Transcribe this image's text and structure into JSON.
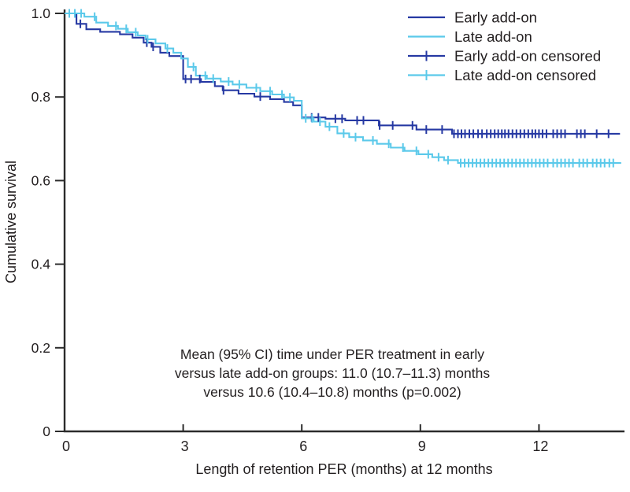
{
  "chart_data": {
    "type": "line",
    "subtype": "kaplan-meier-step-survival",
    "title": "",
    "xlabel": "Length of retention PER (months) at 12 months",
    "ylabel": "Cumulative survival",
    "xlim": [
      0,
      14.1
    ],
    "ylim": [
      0,
      1.0
    ],
    "grid": false,
    "legend_position": "top-right",
    "x_ticks": [
      {
        "value": 0,
        "label": "0"
      },
      {
        "value": 3,
        "label": "3"
      },
      {
        "value": 6,
        "label": "6"
      },
      {
        "value": 9,
        "label": "9"
      },
      {
        "value": 12,
        "label": "12"
      }
    ],
    "y_ticks": [
      {
        "value": 1.0,
        "label": "1.0"
      },
      {
        "value": 0.8,
        "label": "0.8"
      },
      {
        "value": 0.6,
        "label": "0.6"
      },
      {
        "value": 0.4,
        "label": "0.4"
      },
      {
        "value": 0.2,
        "label": "0.2"
      },
      {
        "value": 0.0,
        "label": "0"
      }
    ],
    "colors": {
      "early": "#2639A3",
      "late": "#5BC9EA",
      "axis": "#2B2B2B",
      "text": "#231F20"
    },
    "series": [
      {
        "name": "Early add-on",
        "color_key": "early",
        "step_points": [
          [
            0,
            1.0
          ],
          [
            0.3,
            0.975
          ],
          [
            0.55,
            0.962
          ],
          [
            0.9,
            0.956
          ],
          [
            1.4,
            0.95
          ],
          [
            1.72,
            0.942
          ],
          [
            2.0,
            0.93
          ],
          [
            2.2,
            0.92
          ],
          [
            2.42,
            0.906
          ],
          [
            2.65,
            0.898
          ],
          [
            3.0,
            0.843
          ],
          [
            3.45,
            0.836
          ],
          [
            3.8,
            0.826
          ],
          [
            4.0,
            0.816
          ],
          [
            4.4,
            0.808
          ],
          [
            4.8,
            0.801
          ],
          [
            5.2,
            0.795
          ],
          [
            5.55,
            0.788
          ],
          [
            5.78,
            0.78
          ],
          [
            6.0,
            0.751
          ],
          [
            6.6,
            0.748
          ],
          [
            7.1,
            0.744
          ],
          [
            7.95,
            0.732
          ],
          [
            8.9,
            0.722
          ],
          [
            9.8,
            0.712
          ],
          [
            14.05,
            0.712
          ]
        ],
        "censored_months": [
          0.4,
          2.08,
          2.24,
          3.06,
          3.2,
          3.42,
          4.02,
          4.95,
          6.25,
          6.42,
          6.85,
          7.02,
          7.4,
          7.56,
          7.97,
          8.3,
          8.8,
          9.15,
          9.55,
          9.85,
          9.95,
          10.04,
          10.13,
          10.24,
          10.34,
          10.46,
          10.56,
          10.68,
          10.78,
          10.88,
          10.97,
          11.06,
          11.14,
          11.23,
          11.33,
          11.43,
          11.53,
          11.63,
          11.73,
          11.83,
          11.91,
          12.0,
          12.09,
          12.19,
          12.36,
          12.46,
          12.56,
          12.66,
          12.96,
          13.06,
          13.16,
          13.46,
          13.76
        ]
      },
      {
        "name": "Late add-on",
        "color_key": "late",
        "step_points": [
          [
            0,
            1.0
          ],
          [
            0.5,
            0.992
          ],
          [
            0.8,
            0.978
          ],
          [
            1.1,
            0.97
          ],
          [
            1.35,
            0.963
          ],
          [
            1.6,
            0.955
          ],
          [
            1.85,
            0.947
          ],
          [
            2.05,
            0.938
          ],
          [
            2.3,
            0.928
          ],
          [
            2.55,
            0.916
          ],
          [
            2.75,
            0.906
          ],
          [
            2.95,
            0.892
          ],
          [
            3.12,
            0.872
          ],
          [
            3.32,
            0.851
          ],
          [
            3.6,
            0.844
          ],
          [
            3.95,
            0.837
          ],
          [
            4.25,
            0.83
          ],
          [
            4.6,
            0.822
          ],
          [
            4.95,
            0.814
          ],
          [
            5.25,
            0.806
          ],
          [
            5.55,
            0.799
          ],
          [
            5.8,
            0.791
          ],
          [
            6.0,
            0.749
          ],
          [
            6.3,
            0.741
          ],
          [
            6.6,
            0.729
          ],
          [
            6.9,
            0.713
          ],
          [
            7.2,
            0.704
          ],
          [
            7.55,
            0.696
          ],
          [
            7.9,
            0.688
          ],
          [
            8.25,
            0.679
          ],
          [
            8.6,
            0.671
          ],
          [
            8.95,
            0.663
          ],
          [
            9.3,
            0.656
          ],
          [
            9.6,
            0.649
          ],
          [
            9.95,
            0.642
          ],
          [
            14.08,
            0.642
          ]
        ],
        "censored_months": [
          0.12,
          0.26,
          0.42,
          0.76,
          1.3,
          1.56,
          1.8,
          2.1,
          2.6,
          3.26,
          3.56,
          3.76,
          4.15,
          4.42,
          4.85,
          5.2,
          5.5,
          5.7,
          6.1,
          6.26,
          6.46,
          6.7,
          7.06,
          7.36,
          7.8,
          8.2,
          8.56,
          8.9,
          9.2,
          9.46,
          9.7,
          10.02,
          10.12,
          10.22,
          10.32,
          10.42,
          10.52,
          10.62,
          10.72,
          10.82,
          10.92,
          11.02,
          11.12,
          11.22,
          11.32,
          11.42,
          11.52,
          11.62,
          11.72,
          11.82,
          11.92,
          12.02,
          12.12,
          12.22,
          12.36,
          12.46,
          12.56,
          12.66,
          12.76,
          12.86,
          13.02,
          13.12,
          13.22,
          13.36,
          13.46,
          13.56,
          13.66,
          13.78,
          13.88
        ]
      }
    ],
    "legend": [
      {
        "label": "Early add-on",
        "color_key": "early",
        "censored": false
      },
      {
        "label": "Late add-on",
        "color_key": "late",
        "censored": false
      },
      {
        "label": "Early add-on censored",
        "color_key": "early",
        "censored": true
      },
      {
        "label": "Late add-on censored",
        "color_key": "late",
        "censored": true
      }
    ],
    "annotation": {
      "lines": [
        "Mean (95% CI) time under PER treatment in early",
        "versus late add-on groups: 11.0 (10.7–11.3) months",
        "versus 10.6 (10.4–10.8) months (p=0.002)"
      ]
    }
  }
}
